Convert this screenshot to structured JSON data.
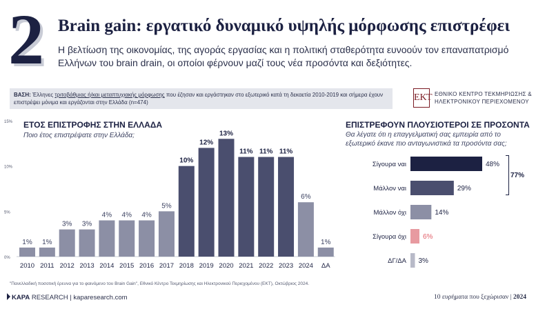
{
  "header": {
    "number": "2",
    "title": "Brain gain: εργατικό δυναμικό υψηλής μόρφωσης επιστρέφει",
    "subtitle": "Η βελτίωση της οικονομίας, της αγοράς εργασίας και η πολιτική σταθερότητα ευνοούν τον επαναπατρισμό Ελλήνων του brain drain, οι οποίοι φέρνουν μαζί τους νέα προσόντα και δεξιότητες."
  },
  "base": {
    "label": "ΒΑΣΗ:",
    "text_1": " Έλληνες ",
    "underlined": "τριτοβάθμιας ή/και μεταπτυχιακής μόρφωσης",
    "text_2": " που έζησαν και εργάστηκαν στο εξωτερικό κατά τη δεκαετία 2010-2019 και σήμερα έχουν επιστρέψει μόνιμα και εργάζονται στην Ελλάδα (n=474)"
  },
  "source_logo": {
    "mark": "ΕΚΤ",
    "line1": "ΕΘΝΙΚΟ ΚΕΝΤΡΟ ΤΕΚΜΗΡΙΩΣΗΣ &",
    "line2": "ΗΛΕΚΤΡΟΝΙΚΟΥ ΠΕΡΙΕΧΟΜΕΝΟΥ"
  },
  "chart_data": [
    {
      "type": "bar",
      "title": "ΕΤΟΣ ΕΠΙΣΤΡΟΦΗΣ ΣΤΗΝ ΕΛΛΑΔΑ",
      "subtitle": "Ποιο έτος επιστρέψατε στην Ελλάδα;",
      "categories": [
        "2010",
        "2011",
        "2012",
        "2013",
        "2014",
        "2015",
        "2016",
        "2017",
        "2018",
        "2019",
        "2020",
        "2021",
        "2022",
        "2023",
        "2024",
        "ΔΑ"
      ],
      "values": [
        1,
        1,
        3,
        3,
        4,
        4,
        4,
        5,
        10,
        12,
        13,
        11,
        11,
        11,
        6,
        1
      ],
      "labels": [
        "1%",
        "1%",
        "3%",
        "3%",
        "4%",
        "4%",
        "4%",
        "5%",
        "10%",
        "12%",
        "13%",
        "11%",
        "11%",
        "11%",
        "6%",
        "1%"
      ],
      "colors": [
        "#8c8fa5",
        "#8c8fa5",
        "#8c8fa5",
        "#8c8fa5",
        "#8c8fa5",
        "#8c8fa5",
        "#8c8fa5",
        "#8c8fa5",
        "#4a4e6e",
        "#4a4e6e",
        "#4a4e6e",
        "#4a4e6e",
        "#4a4e6e",
        "#4a4e6e",
        "#8c8fa5",
        "#8c8fa5"
      ],
      "yticks": [
        "0%",
        "5%",
        "10%",
        "15%"
      ],
      "ylim": [
        0,
        15
      ],
      "xlabel": "",
      "ylabel": ""
    },
    {
      "type": "bar",
      "orientation": "horizontal",
      "title": "ΕΠΙΣΤΡΕΦΟΥΝ ΠΛΟΥΣΙΟΤΕΡΟΙ ΣΕ ΠΡΟΣΟΝΤΑ",
      "subtitle": "Θα λέγατε ότι η επαγγελματική σας εμπειρία από το εξωτερικό έκανε πιο ανταγωνιστικά τα προσόντα σας;",
      "categories": [
        "Σίγουρα ναι",
        "Μάλλον ναι",
        "Μάλλον όχι",
        "Σίγουρα όχι",
        "ΔΓ/ΔΑ"
      ],
      "values": [
        48,
        29,
        14,
        6,
        3
      ],
      "labels": [
        "48%",
        "29%",
        "14%",
        "6%",
        "3%"
      ],
      "colors": [
        "#1c2142",
        "#4a4e6e",
        "#8c8fa5",
        "#e79aa0",
        "#b8bac8"
      ],
      "label_colors": [
        "#1c2142",
        "#1c2142",
        "#1c2142",
        "#e2606a",
        "#1c2142"
      ],
      "xlim": [
        0,
        48
      ],
      "bracket_label": "77%"
    }
  ],
  "footer": {
    "footnote": "\"Πανελλαδική ποσοτική έρευνα για το φαινόμενο του Brain Gain\", Εθνικό Κέντρο Τεκμηρίωσης και Ηλεκτρονικού Περιεχομένου (ΕΚΤ), Οκτώβριος 2024.",
    "brand_bold": "ΚΑΡΑ",
    "brand_rest": "RESEARCH",
    "url": "kaparesearch.com",
    "tagline": "10 ευρήματα που ξεχώρισαν",
    "year": "2024"
  }
}
